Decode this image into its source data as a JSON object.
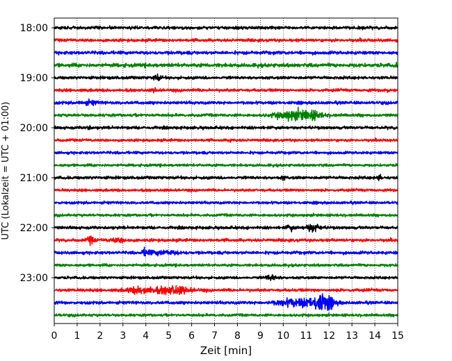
{
  "chart_data": {
    "type": "line",
    "title": "",
    "xlabel": "Zeit  [min]",
    "ylabel": "UTC (Lokalzeit = UTC + 01:00)",
    "xlim": [
      0,
      15
    ],
    "x_ticks": [
      "0",
      "1",
      "2",
      "3",
      "4",
      "5",
      "6",
      "7",
      "8",
      "9",
      "10",
      "11",
      "12",
      "13",
      "14",
      "15"
    ],
    "y_ticks": [
      "18:00",
      "19:00",
      "20:00",
      "21:00",
      "22:00",
      "23:00"
    ],
    "grid": "vertical dotted",
    "line_minutes": 15,
    "colors": [
      "#000000",
      "#ff0000",
      "#0000ff",
      "#008000"
    ],
    "series": [
      {
        "start": "18:00",
        "color": "#000000",
        "amplitude": 0.2,
        "events": []
      },
      {
        "start": "18:15",
        "color": "#ff0000",
        "amplitude": 0.2,
        "events": []
      },
      {
        "start": "18:30",
        "color": "#0000ff",
        "amplitude": 0.22,
        "events": []
      },
      {
        "start": "18:45",
        "color": "#008000",
        "amplitude": 0.25,
        "events": [
          {
            "t": 14.9,
            "w": 0.1,
            "a": 0.2
          }
        ]
      },
      {
        "start": "19:00",
        "color": "#000000",
        "amplitude": 0.2,
        "events": [
          {
            "t": 4.5,
            "w": 0.3,
            "a": 0.35
          }
        ]
      },
      {
        "start": "19:15",
        "color": "#ff0000",
        "amplitude": 0.2,
        "events": [
          {
            "t": 4.4,
            "w": 0.2,
            "a": 0.2
          },
          {
            "t": 14.5,
            "w": 0.2,
            "a": 0.2
          }
        ]
      },
      {
        "start": "19:30",
        "color": "#0000ff",
        "amplitude": 0.2,
        "events": [
          {
            "t": 1.5,
            "w": 0.8,
            "a": 0.2
          }
        ]
      },
      {
        "start": "19:45",
        "color": "#008000",
        "amplitude": 0.2,
        "events": [
          {
            "t": 10.3,
            "w": 1.2,
            "a": 0.55
          },
          {
            "t": 11.2,
            "w": 1.0,
            "a": 0.5
          }
        ]
      },
      {
        "start": "20:00",
        "color": "#000000",
        "amplitude": 0.2,
        "events": [
          {
            "t": 1.5,
            "w": 0.2,
            "a": 0.2
          }
        ]
      },
      {
        "start": "20:15",
        "color": "#ff0000",
        "amplitude": 0.18,
        "events": [
          {
            "t": 7.7,
            "w": 0.1,
            "a": 0.3
          }
        ]
      },
      {
        "start": "20:30",
        "color": "#0000ff",
        "amplitude": 0.18,
        "events": []
      },
      {
        "start": "20:45",
        "color": "#008000",
        "amplitude": 0.18,
        "events": []
      },
      {
        "start": "21:00",
        "color": "#000000",
        "amplitude": 0.2,
        "events": [
          {
            "t": 10.0,
            "w": 0.2,
            "a": 0.2
          },
          {
            "t": 14.2,
            "w": 0.2,
            "a": 0.35
          }
        ]
      },
      {
        "start": "21:15",
        "color": "#ff0000",
        "amplitude": 0.18,
        "events": []
      },
      {
        "start": "21:30",
        "color": "#0000ff",
        "amplitude": 0.18,
        "events": []
      },
      {
        "start": "21:45",
        "color": "#008000",
        "amplitude": 0.18,
        "events": []
      },
      {
        "start": "22:00",
        "color": "#000000",
        "amplitude": 0.2,
        "events": [
          {
            "t": 10.3,
            "w": 0.3,
            "a": 0.3
          },
          {
            "t": 11.3,
            "w": 0.6,
            "a": 0.5
          }
        ]
      },
      {
        "start": "22:15",
        "color": "#ff0000",
        "amplitude": 0.2,
        "events": [
          {
            "t": 1.6,
            "w": 0.3,
            "a": 0.45
          },
          {
            "t": 2.8,
            "w": 0.8,
            "a": 0.2
          }
        ]
      },
      {
        "start": "22:30",
        "color": "#0000ff",
        "amplitude": 0.2,
        "events": [
          {
            "t": 4.0,
            "w": 0.3,
            "a": 0.45
          },
          {
            "t": 4.8,
            "w": 1.2,
            "a": 0.25
          }
        ]
      },
      {
        "start": "22:45",
        "color": "#008000",
        "amplitude": 0.18,
        "events": []
      },
      {
        "start": "23:00",
        "color": "#000000",
        "amplitude": 0.18,
        "events": [
          {
            "t": 9.5,
            "w": 0.5,
            "a": 0.3
          }
        ]
      },
      {
        "start": "23:15",
        "color": "#ff0000",
        "amplitude": 0.2,
        "events": [
          {
            "t": 3.8,
            "w": 1.2,
            "a": 0.4
          },
          {
            "t": 5.2,
            "w": 1.4,
            "a": 0.5
          }
        ]
      },
      {
        "start": "23:30",
        "color": "#0000ff",
        "amplitude": 0.2,
        "events": [
          {
            "t": 10.5,
            "w": 1.6,
            "a": 0.45
          },
          {
            "t": 11.7,
            "w": 1.0,
            "a": 1.0
          }
        ]
      },
      {
        "start": "23:45",
        "color": "#008000",
        "amplitude": 0.18,
        "events": []
      }
    ]
  }
}
